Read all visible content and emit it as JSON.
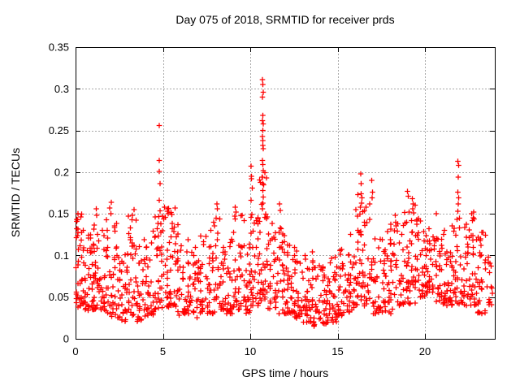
{
  "title": "Day 075 of 2018, SRMTID for receiver prds",
  "x_axis": {
    "label": "GPS time / hours",
    "min": 0,
    "max": 24,
    "ticks": [
      {
        "v": 0,
        "label": "0"
      },
      {
        "v": 5,
        "label": "5"
      },
      {
        "v": 10,
        "label": "10"
      },
      {
        "v": 15,
        "label": "15"
      },
      {
        "v": 20,
        "label": "20"
      }
    ]
  },
  "y_axis": {
    "label": "SRMTID / TECUs",
    "min": 0,
    "max": 0.35,
    "ticks": [
      {
        "v": 0.0,
        "label": "0"
      },
      {
        "v": 0.05,
        "label": "0.05"
      },
      {
        "v": 0.1,
        "label": "0.1"
      },
      {
        "v": 0.15,
        "label": "0.15"
      },
      {
        "v": 0.2,
        "label": "0.2"
      },
      {
        "v": 0.25,
        "label": "0.25"
      },
      {
        "v": 0.3,
        "label": "0.3"
      },
      {
        "v": 0.35,
        "label": "0.35"
      }
    ]
  },
  "colors": {
    "marker": "#ff0000",
    "grid": "#a8a8a8",
    "axis": "#000000",
    "background": "#ffffff",
    "text": "#000000"
  },
  "chart_data": {
    "type": "scatter",
    "marker": "plus",
    "series_name": "SRMTID for receiver prds",
    "title": "Day 075 of 2018, SRMTID for receiver prds",
    "xlabel": "GPS time / hours",
    "ylabel": "SRMTID / TECUs",
    "xlim": [
      0,
      24
    ],
    "ylim": [
      0,
      0.35
    ],
    "grid": true,
    "legend": "none",
    "prng_seed": 20180750,
    "points": [
      [
        0.12,
        0.143
      ],
      [
        0.15,
        0.15
      ],
      [
        0.3,
        0.146
      ],
      [
        1.18,
        0.156
      ],
      [
        1.22,
        0.148
      ],
      [
        1.95,
        0.157
      ],
      [
        2.05,
        0.164
      ],
      [
        2.02,
        0.15
      ],
      [
        3.35,
        0.155
      ],
      [
        4.79,
        0.256
      ],
      [
        4.79,
        0.214
      ],
      [
        4.79,
        0.201
      ],
      [
        4.84,
        0.186
      ],
      [
        4.79,
        0.166
      ],
      [
        5.1,
        0.158
      ],
      [
        5.28,
        0.156
      ],
      [
        5.3,
        0.15
      ],
      [
        5.52,
        0.149
      ],
      [
        5.7,
        0.157
      ],
      [
        7.9,
        0.14
      ],
      [
        8.05,
        0.145
      ],
      [
        8.1,
        0.162
      ],
      [
        8.12,
        0.156
      ],
      [
        9.15,
        0.158
      ],
      [
        9.18,
        0.152
      ],
      [
        9.12,
        0.147
      ],
      [
        10.05,
        0.207
      ],
      [
        10.08,
        0.195
      ],
      [
        10.06,
        0.192
      ],
      [
        10.12,
        0.181
      ],
      [
        10.04,
        0.166
      ],
      [
        10.1,
        0.149
      ],
      [
        10.7,
        0.311
      ],
      [
        10.72,
        0.305
      ],
      [
        10.74,
        0.296
      ],
      [
        10.7,
        0.29
      ],
      [
        10.72,
        0.268
      ],
      [
        10.7,
        0.262
      ],
      [
        10.74,
        0.258
      ],
      [
        10.72,
        0.25
      ],
      [
        10.7,
        0.243
      ],
      [
        10.73,
        0.238
      ],
      [
        10.71,
        0.232
      ],
      [
        10.74,
        0.228
      ],
      [
        10.7,
        0.214
      ],
      [
        10.72,
        0.209
      ],
      [
        10.75,
        0.202
      ],
      [
        10.7,
        0.194
      ],
      [
        10.73,
        0.186
      ],
      [
        10.71,
        0.178
      ],
      [
        10.74,
        0.17
      ],
      [
        10.72,
        0.163
      ],
      [
        10.7,
        0.156
      ],
      [
        11.68,
        0.162
      ],
      [
        11.72,
        0.154
      ],
      [
        16.32,
        0.198
      ],
      [
        16.36,
        0.186
      ],
      [
        16.34,
        0.174
      ],
      [
        16.4,
        0.169
      ],
      [
        16.38,
        0.163
      ],
      [
        16.3,
        0.158
      ],
      [
        16.95,
        0.19
      ],
      [
        17.0,
        0.176
      ],
      [
        16.98,
        0.169
      ],
      [
        18.3,
        0.148
      ],
      [
        18.32,
        0.14
      ],
      [
        19.0,
        0.177
      ],
      [
        19.05,
        0.171
      ],
      [
        19.28,
        0.168
      ],
      [
        19.32,
        0.162
      ],
      [
        19.3,
        0.156
      ],
      [
        19.1,
        0.152
      ],
      [
        20.65,
        0.15
      ],
      [
        21.88,
        0.213
      ],
      [
        21.92,
        0.208
      ],
      [
        21.9,
        0.194
      ],
      [
        21.88,
        0.176
      ],
      [
        21.92,
        0.169
      ],
      [
        21.9,
        0.162
      ],
      [
        21.88,
        0.153
      ],
      [
        22.78,
        0.152
      ],
      [
        22.82,
        0.144
      ],
      [
        23.18,
        0.12
      ],
      [
        23.22,
        0.112
      ]
    ],
    "cloud_bins": {
      "format": [
        "t_start",
        "t_end",
        "y_min",
        "y_max",
        "count"
      ],
      "bins": [
        [
          0.0,
          0.5,
          0.038,
          0.15,
          40
        ],
        [
          0.5,
          1.0,
          0.033,
          0.125,
          34
        ],
        [
          1.0,
          1.5,
          0.035,
          0.156,
          36
        ],
        [
          1.5,
          2.0,
          0.03,
          0.15,
          32
        ],
        [
          2.0,
          2.5,
          0.025,
          0.145,
          32
        ],
        [
          2.5,
          3.0,
          0.02,
          0.105,
          30
        ],
        [
          3.0,
          3.5,
          0.028,
          0.152,
          32
        ],
        [
          3.5,
          4.0,
          0.02,
          0.12,
          30
        ],
        [
          4.0,
          4.5,
          0.028,
          0.13,
          30
        ],
        [
          4.5,
          5.0,
          0.035,
          0.155,
          36
        ],
        [
          5.0,
          5.5,
          0.038,
          0.158,
          32
        ],
        [
          5.5,
          6.0,
          0.028,
          0.14,
          30
        ],
        [
          6.0,
          6.5,
          0.03,
          0.13,
          28
        ],
        [
          6.5,
          7.0,
          0.025,
          0.115,
          28
        ],
        [
          7.0,
          7.5,
          0.03,
          0.125,
          28
        ],
        [
          7.5,
          8.0,
          0.03,
          0.145,
          30
        ],
        [
          8.0,
          8.5,
          0.035,
          0.15,
          32
        ],
        [
          8.5,
          9.0,
          0.03,
          0.12,
          28
        ],
        [
          9.0,
          9.5,
          0.035,
          0.158,
          30
        ],
        [
          9.5,
          10.0,
          0.03,
          0.15,
          30
        ],
        [
          10.0,
          10.5,
          0.04,
          0.16,
          32
        ],
        [
          10.5,
          11.0,
          0.045,
          0.2,
          38
        ],
        [
          11.0,
          11.5,
          0.035,
          0.15,
          30
        ],
        [
          11.5,
          12.0,
          0.03,
          0.16,
          30
        ],
        [
          12.0,
          12.5,
          0.03,
          0.12,
          32
        ],
        [
          12.5,
          13.0,
          0.025,
          0.11,
          32
        ],
        [
          13.0,
          13.5,
          0.02,
          0.1,
          30
        ],
        [
          13.5,
          14.0,
          0.015,
          0.11,
          30
        ],
        [
          14.0,
          14.5,
          0.018,
          0.095,
          32
        ],
        [
          14.5,
          15.0,
          0.02,
          0.1,
          32
        ],
        [
          15.0,
          15.5,
          0.028,
          0.11,
          28
        ],
        [
          15.5,
          16.0,
          0.03,
          0.14,
          30
        ],
        [
          16.0,
          16.5,
          0.04,
          0.175,
          34
        ],
        [
          16.5,
          17.0,
          0.038,
          0.165,
          30
        ],
        [
          17.0,
          17.5,
          0.03,
          0.12,
          28
        ],
        [
          17.5,
          18.0,
          0.032,
          0.13,
          28
        ],
        [
          18.0,
          18.5,
          0.03,
          0.148,
          28
        ],
        [
          18.5,
          19.0,
          0.04,
          0.155,
          30
        ],
        [
          19.0,
          19.5,
          0.042,
          0.165,
          32
        ],
        [
          19.5,
          20.0,
          0.05,
          0.145,
          30
        ],
        [
          20.0,
          20.5,
          0.055,
          0.145,
          34
        ],
        [
          20.5,
          21.0,
          0.045,
          0.145,
          30
        ],
        [
          21.0,
          21.5,
          0.04,
          0.135,
          30
        ],
        [
          21.5,
          22.0,
          0.04,
          0.15,
          32
        ],
        [
          22.0,
          22.5,
          0.04,
          0.14,
          30
        ],
        [
          22.5,
          23.0,
          0.038,
          0.152,
          30
        ],
        [
          23.0,
          23.5,
          0.03,
          0.13,
          30
        ],
        [
          23.5,
          23.9,
          0.04,
          0.1,
          14
        ]
      ]
    }
  }
}
